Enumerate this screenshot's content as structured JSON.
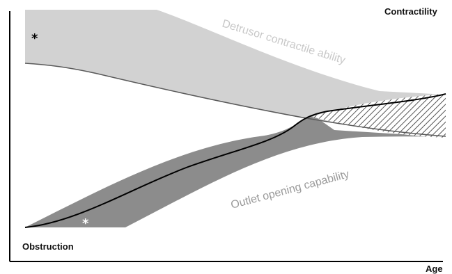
{
  "labels": {
    "contractility": "Contractility",
    "obstruction": "Obstruction",
    "age": "Age",
    "detrusor": "Detrusor contractile ability",
    "outlet": "Outlet opening capability"
  },
  "markers": {
    "upper_asterisk": "*",
    "lower_asterisk": "*"
  },
  "colors": {
    "upper_band_fill": "#d2d2d2",
    "lower_band_fill": "#8c8c8c",
    "curve_stroke": "#000000",
    "upper_lower_edge": "#5a5a5a",
    "hatch": "#555555",
    "detrusor_label": "#c8c8c8",
    "outlet_label": "#9a9a9a",
    "axis": "#000000",
    "upper_asterisk": "#000000",
    "lower_asterisk": "#ffffff"
  }
}
